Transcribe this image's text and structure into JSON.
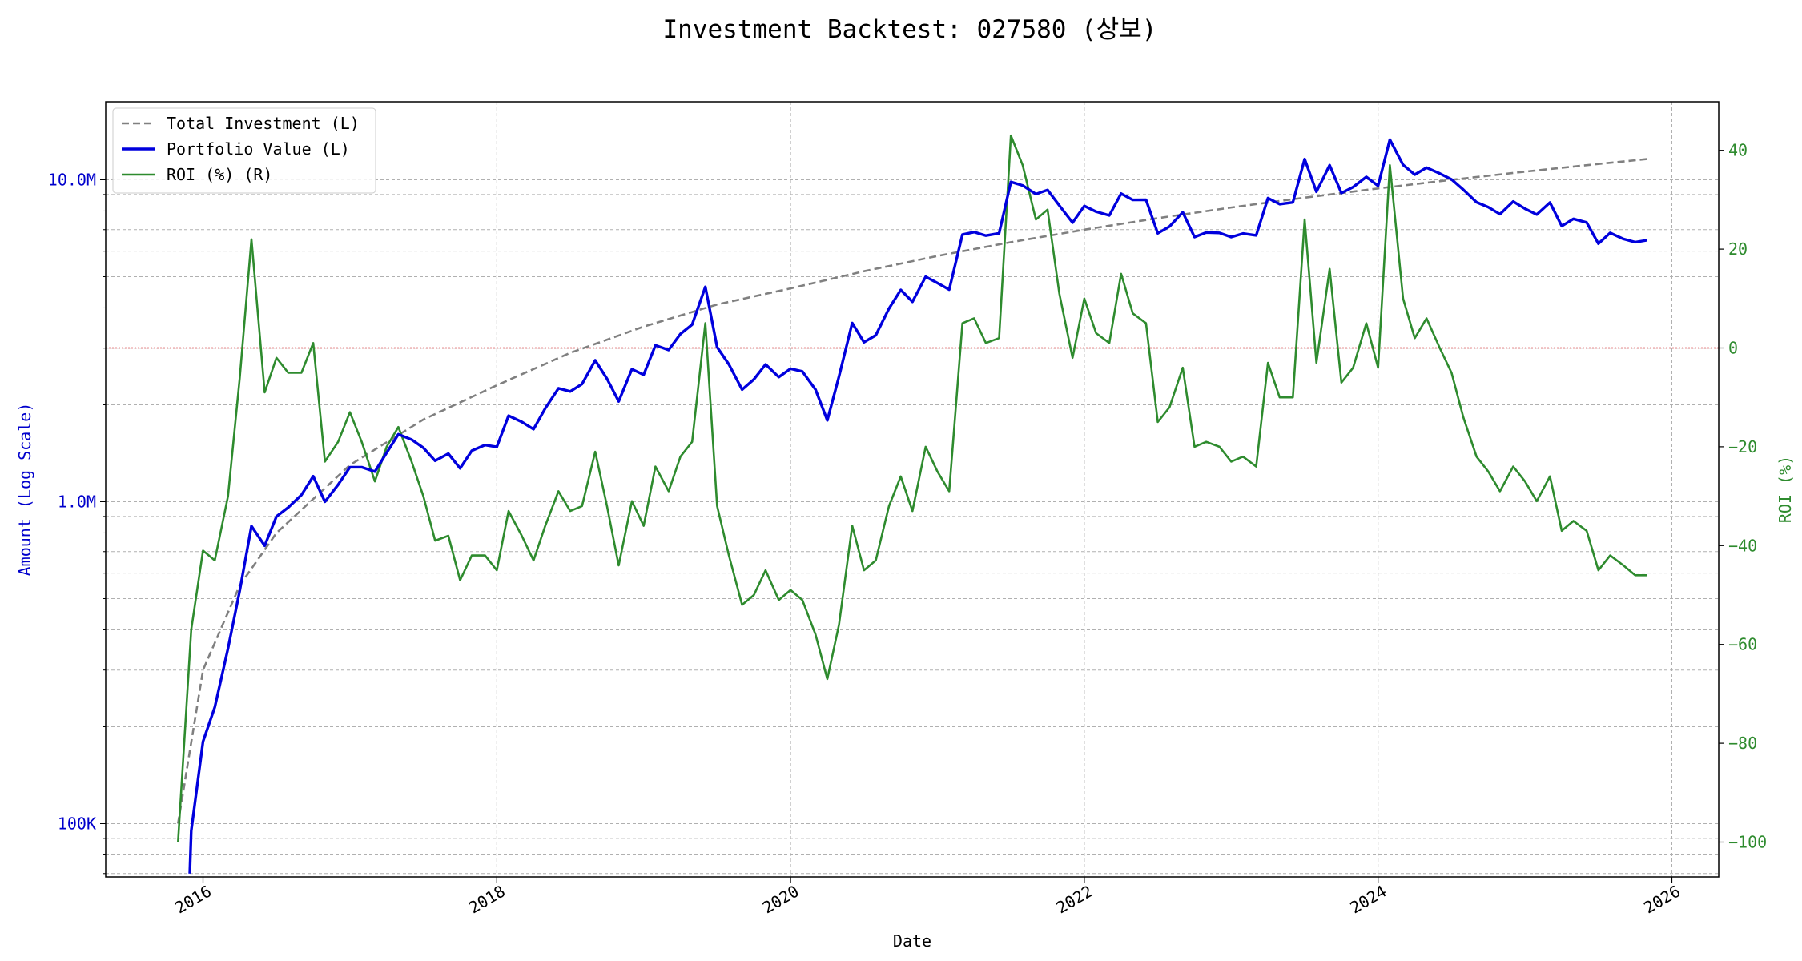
{
  "chart_data": {
    "type": "line",
    "title": "Investment Backtest: 027580 (상보)",
    "xlabel": "Date",
    "ylabel_left": "Amount (Log Scale)",
    "ylabel_right": "ROI (%)",
    "y_left_scale": "log",
    "y_left_ticks": [
      {
        "value": 100000,
        "label": "100K"
      },
      {
        "value": 1000000,
        "label": "1.0M"
      },
      {
        "value": 10000000,
        "label": "10.0M"
      }
    ],
    "y_right_ticks": [
      {
        "value": -100,
        "label": "−100"
      },
      {
        "value": -80,
        "label": "−80"
      },
      {
        "value": -60,
        "label": "−60"
      },
      {
        "value": -40,
        "label": "−40"
      },
      {
        "value": -20,
        "label": "−20"
      },
      {
        "value": 0,
        "label": "0"
      },
      {
        "value": 20,
        "label": "20"
      },
      {
        "value": 40,
        "label": "40"
      }
    ],
    "x_ticks": [
      "2016",
      "2018",
      "2020",
      "2022",
      "2024",
      "2026"
    ],
    "grid": true,
    "legend_position": "top-left",
    "reference_line": {
      "axis": "right",
      "value": 0,
      "color": "#d62728",
      "style": "dotted"
    },
    "series": [
      {
        "name": "Total Investment (L)",
        "axis": "left",
        "color": "#808080",
        "style": "dashed",
        "x": [
          2015.83,
          2016.0,
          2016.25,
          2016.5,
          2017.0,
          2017.5,
          2018.0,
          2018.5,
          2019.0,
          2019.5,
          2020.0,
          2020.5,
          2021.0,
          2021.5,
          2022.0,
          2022.5,
          2023.0,
          2023.5,
          2024.0,
          2024.5,
          2025.0,
          2025.5,
          2025.83
        ],
        "y": [
          100000,
          300000,
          550000,
          800000,
          1300000,
          1800000,
          2300000,
          2900000,
          3500000,
          4100000,
          4600000,
          5200000,
          5800000,
          6400000,
          7000000,
          7600000,
          8200000,
          8800000,
          9400000,
          10000000,
          10600000,
          11200000,
          11600000
        ]
      },
      {
        "name": "Portfolio Value (L)",
        "axis": "left",
        "color": "#0000dd",
        "style": "solid",
        "x": [
          2015.91,
          2015.92,
          2016.0,
          2016.08,
          2016.17,
          2016.25,
          2016.33,
          2016.42,
          2016.5,
          2016.58,
          2016.67,
          2016.75,
          2016.83,
          2016.92,
          2017.0,
          2017.08,
          2017.17,
          2017.25,
          2017.33,
          2017.42,
          2017.5,
          2017.58,
          2017.67,
          2017.75,
          2017.83,
          2017.92,
          2018.0,
          2018.08,
          2018.17,
          2018.25,
          2018.33,
          2018.42,
          2018.5,
          2018.58,
          2018.67,
          2018.75,
          2018.83,
          2018.92,
          2019.0,
          2019.08,
          2019.17,
          2019.25,
          2019.33,
          2019.42,
          2019.5,
          2019.58,
          2019.67,
          2019.75,
          2019.83,
          2019.92,
          2020.0,
          2020.08,
          2020.17,
          2020.25,
          2020.33,
          2020.42,
          2020.5,
          2020.58,
          2020.67,
          2020.75,
          2020.83,
          2020.92,
          2021.0,
          2021.08,
          2021.17,
          2021.25,
          2021.33,
          2021.42,
          2021.5,
          2021.58,
          2021.67,
          2021.75,
          2021.83,
          2021.92,
          2022.0,
          2022.08,
          2022.17,
          2022.25,
          2022.33,
          2022.42,
          2022.5,
          2022.58,
          2022.67,
          2022.75,
          2022.83,
          2022.92,
          2023.0,
          2023.08,
          2023.17,
          2023.25,
          2023.33,
          2023.42,
          2023.5,
          2023.58,
          2023.67,
          2023.75,
          2023.83,
          2023.92,
          2024.0,
          2024.08,
          2024.17,
          2024.25,
          2024.33,
          2024.42,
          2024.5,
          2024.58,
          2024.67,
          2024.75,
          2024.83,
          2024.92,
          2025.0,
          2025.08,
          2025.17,
          2025.25,
          2025.33,
          2025.42,
          2025.5,
          2025.58,
          2025.67,
          2025.75,
          2025.83
        ],
        "y": [
          70000,
          95000,
          180000,
          230000,
          350000,
          530000,
          840000,
          730000,
          900000,
          960000,
          1050000,
          1200000,
          1000000,
          1130000,
          1280000,
          1280000,
          1240000,
          1420000,
          1620000,
          1560000,
          1470000,
          1340000,
          1410000,
          1270000,
          1440000,
          1500000,
          1480000,
          1850000,
          1770000,
          1680000,
          1950000,
          2250000,
          2200000,
          2320000,
          2750000,
          2410000,
          2050000,
          2580000,
          2480000,
          3060000,
          2960000,
          3320000,
          3550000,
          4650000,
          3020000,
          2670000,
          2230000,
          2400000,
          2670000,
          2440000,
          2590000,
          2540000,
          2230000,
          1790000,
          2450000,
          3590000,
          3130000,
          3290000,
          3980000,
          4550000,
          4180000,
          5000000,
          4780000,
          4560000,
          6760000,
          6880000,
          6710000,
          6820000,
          9850000,
          9600000,
          9030000,
          9300000,
          8320000,
          7360000,
          8290000,
          7960000,
          7750000,
          9060000,
          8660000,
          8670000,
          6820000,
          7160000,
          7930000,
          6640000,
          6860000,
          6840000,
          6640000,
          6810000,
          6720000,
          8770000,
          8400000,
          8510000,
          11600000,
          9180000,
          11100000,
          9100000,
          9490000,
          10210000,
          9580000,
          13330000,
          11130000,
          10380000,
          10910000,
          10460000,
          10030000,
          9320000,
          8520000,
          8220000,
          7820000,
          8560000,
          8130000,
          7800000,
          8500000,
          7180000,
          7560000,
          7370000,
          6330000,
          6840000,
          6550000,
          6400000,
          6490000
        ]
      },
      {
        "name": "ROI (%) (R)",
        "axis": "right",
        "color": "#2e8b2e",
        "style": "solid",
        "x": [
          2015.83,
          2015.92,
          2016.0,
          2016.08,
          2016.17,
          2016.25,
          2016.33,
          2016.42,
          2016.5,
          2016.58,
          2016.67,
          2016.75,
          2016.83,
          2016.92,
          2017.0,
          2017.08,
          2017.17,
          2017.25,
          2017.33,
          2017.42,
          2017.5,
          2017.58,
          2017.67,
          2017.75,
          2017.83,
          2017.92,
          2018.0,
          2018.08,
          2018.17,
          2018.25,
          2018.33,
          2018.42,
          2018.5,
          2018.58,
          2018.67,
          2018.75,
          2018.83,
          2018.92,
          2019.0,
          2019.08,
          2019.17,
          2019.25,
          2019.33,
          2019.42,
          2019.5,
          2019.58,
          2019.67,
          2019.75,
          2019.83,
          2019.92,
          2020.0,
          2020.08,
          2020.17,
          2020.25,
          2020.33,
          2020.42,
          2020.5,
          2020.58,
          2020.67,
          2020.75,
          2020.83,
          2020.92,
          2021.0,
          2021.08,
          2021.17,
          2021.25,
          2021.33,
          2021.42,
          2021.5,
          2021.58,
          2021.67,
          2021.75,
          2021.83,
          2021.92,
          2022.0,
          2022.08,
          2022.17,
          2022.25,
          2022.33,
          2022.42,
          2022.5,
          2022.58,
          2022.67,
          2022.75,
          2022.83,
          2022.92,
          2023.0,
          2023.08,
          2023.17,
          2023.25,
          2023.33,
          2023.42,
          2023.5,
          2023.58,
          2023.67,
          2023.75,
          2023.83,
          2023.92,
          2024.0,
          2024.08,
          2024.17,
          2024.25,
          2024.33,
          2024.42,
          2024.5,
          2024.58,
          2024.67,
          2024.75,
          2024.83,
          2024.92,
          2025.0,
          2025.08,
          2025.17,
          2025.25,
          2025.33,
          2025.42,
          2025.5,
          2025.58,
          2025.67,
          2025.75,
          2025.83
        ],
        "y": [
          -100,
          -57,
          -41,
          -43,
          -30,
          -6,
          22,
          -9,
          -2,
          -5,
          -5,
          1,
          -23,
          -19,
          -13,
          -19,
          -27,
          -20,
          -16,
          -23,
          -30,
          -39,
          -38,
          -47,
          -42,
          -42,
          -45,
          -33,
          -38,
          -43,
          -36,
          -29,
          -33,
          -32,
          -21,
          -32,
          -44,
          -31,
          -36,
          -24,
          -29,
          -22,
          -19,
          5,
          -32,
          -42,
          -52,
          -50,
          -45,
          -51,
          -49,
          -51,
          -58,
          -67,
          -56,
          -36,
          -45,
          -43,
          -32,
          -26,
          -33,
          -20,
          -25,
          -29,
          5,
          6,
          1,
          2,
          43,
          37,
          26,
          28,
          11,
          -2,
          10,
          3,
          1,
          15,
          7,
          5,
          -15,
          -12,
          -4,
          -20,
          -19,
          -20,
          -23,
          -22,
          -24,
          -3,
          -10,
          -10,
          26,
          -3,
          16,
          -7,
          -4,
          5,
          -4,
          37,
          10,
          2,
          6,
          0,
          -5,
          -14,
          -22,
          -25,
          -29,
          -24,
          -27,
          -31,
          -26,
          -37,
          -35,
          -37,
          -45,
          -42,
          -44,
          -46,
          -46
        ]
      }
    ]
  }
}
